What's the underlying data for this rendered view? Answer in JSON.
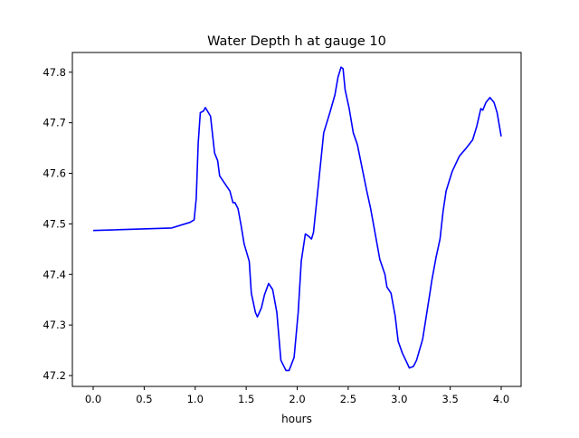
{
  "chart_data": {
    "type": "line",
    "title": "Water Depth h at gauge 10",
    "xlabel": "hours",
    "ylabel": "",
    "xlim": [
      -0.204,
      4.195
    ],
    "ylim": [
      47.1785,
      47.839
    ],
    "xticks": [
      0.0,
      0.5,
      1.0,
      1.5,
      2.0,
      2.5,
      3.0,
      3.5,
      4.0
    ],
    "xtick_labels": [
      "0.0",
      "0.5",
      "1.0",
      "1.5",
      "2.0",
      "2.5",
      "3.0",
      "3.5",
      "4.0"
    ],
    "yticks": [
      47.2,
      47.3,
      47.4,
      47.5,
      47.6,
      47.7,
      47.8
    ],
    "ytick_labels": [
      "47.2",
      "47.3",
      "47.4",
      "47.5",
      "47.6",
      "47.7",
      "47.8"
    ],
    "grid": false,
    "series": [
      {
        "name": "h",
        "color": "#0000ff",
        "x": [
          0,
          0.77,
          0.95,
          0.99,
          1.01,
          1.03,
          1.05,
          1.08,
          1.1,
          1.15,
          1.19,
          1.22,
          1.24,
          1.3,
          1.34,
          1.37,
          1.39,
          1.42,
          1.45,
          1.48,
          1.53,
          1.55,
          1.59,
          1.61,
          1.65,
          1.68,
          1.72,
          1.76,
          1.8,
          1.84,
          1.89,
          1.92,
          1.97,
          2.01,
          2.04,
          2.08,
          2.11,
          2.14,
          2.16,
          2.19,
          2.23,
          2.26,
          2.32,
          2.37,
          2.4,
          2.43,
          2.45,
          2.47,
          2.51,
          2.55,
          2.59,
          2.68,
          2.72,
          2.77,
          2.81,
          2.86,
          2.88,
          2.92,
          2.96,
          2.99,
          3.03,
          3.1,
          3.14,
          3.17,
          3.23,
          3.3,
          3.32,
          3.36,
          3.4,
          3.43,
          3.46,
          3.52,
          3.59,
          3.65,
          3.72,
          3.76,
          3.8,
          3.82,
          3.85,
          3.89,
          3.93,
          3.96,
          4.0
        ],
        "y": [
          47.487,
          47.492,
          47.503,
          47.508,
          47.55,
          47.66,
          47.72,
          47.723,
          47.73,
          47.713,
          47.64,
          47.625,
          47.595,
          47.577,
          47.565,
          47.542,
          47.542,
          47.53,
          47.497,
          47.46,
          47.426,
          47.363,
          47.325,
          47.316,
          47.334,
          47.36,
          47.382,
          47.37,
          47.325,
          47.23,
          47.21,
          47.21,
          47.236,
          47.325,
          47.426,
          47.48,
          47.476,
          47.47,
          47.483,
          47.542,
          47.62,
          47.68,
          47.72,
          47.755,
          47.79,
          47.81,
          47.807,
          47.765,
          47.728,
          47.68,
          47.657,
          47.567,
          47.53,
          47.475,
          47.43,
          47.4,
          47.375,
          47.363,
          47.318,
          47.268,
          47.245,
          47.215,
          47.218,
          47.23,
          47.272,
          47.362,
          47.388,
          47.433,
          47.47,
          47.524,
          47.565,
          47.604,
          47.634,
          47.648,
          47.666,
          47.693,
          47.728,
          47.725,
          47.74,
          47.75,
          47.74,
          47.72,
          47.673
        ]
      }
    ]
  }
}
